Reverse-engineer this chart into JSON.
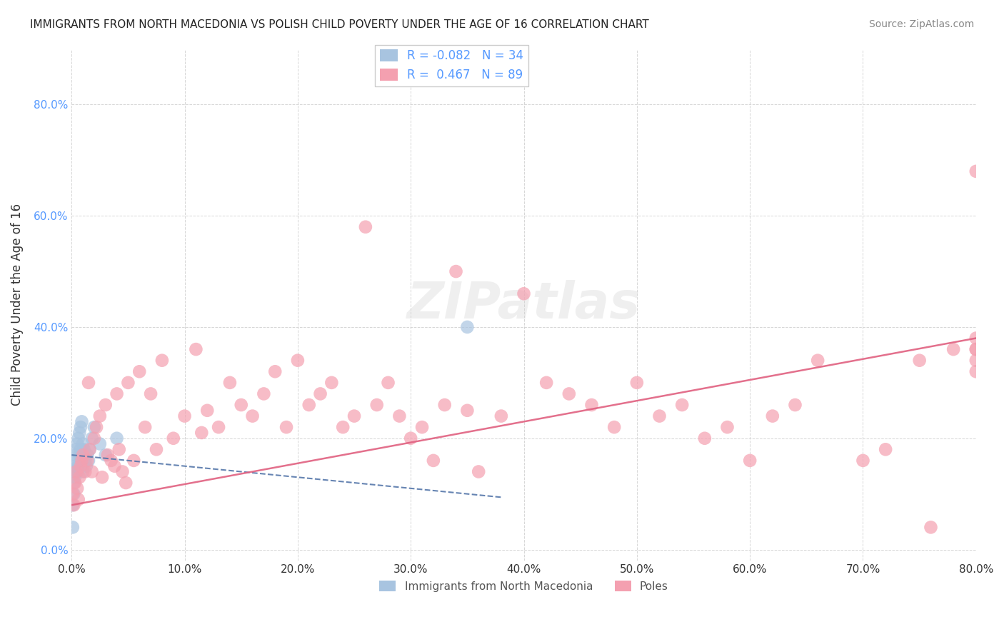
{
  "title": "IMMIGRANTS FROM NORTH MACEDONIA VS POLISH CHILD POVERTY UNDER THE AGE OF 16 CORRELATION CHART",
  "source": "Source: ZipAtlas.com",
  "xlabel": "",
  "ylabel": "Child Poverty Under the Age of 16",
  "legend_label1": "Immigrants from North Macedonia",
  "legend_label2": "Poles",
  "r1": -0.082,
  "n1": 34,
  "r2": 0.467,
  "n2": 89,
  "color1": "#a8c4e0",
  "color2": "#f4a0b0",
  "trendline1_color": "#5577aa",
  "trendline2_color": "#e06080",
  "xlim": [
    0,
    0.8
  ],
  "ylim": [
    -0.02,
    0.9
  ],
  "xticks": [
    0.0,
    0.1,
    0.2,
    0.3,
    0.4,
    0.5,
    0.6,
    0.7,
    0.8
  ],
  "yticks": [
    0.0,
    0.2,
    0.4,
    0.6,
    0.8
  ],
  "background_color": "#ffffff",
  "watermark": "ZIPatlas",
  "blue_points_x": [
    0.001,
    0.001,
    0.002,
    0.002,
    0.002,
    0.003,
    0.003,
    0.003,
    0.004,
    0.004,
    0.005,
    0.005,
    0.006,
    0.006,
    0.007,
    0.007,
    0.008,
    0.008,
    0.009,
    0.009,
    0.01,
    0.01,
    0.011,
    0.012,
    0.013,
    0.014,
    0.015,
    0.016,
    0.018,
    0.02,
    0.025,
    0.03,
    0.04,
    0.35
  ],
  "blue_points_y": [
    0.08,
    0.04,
    0.12,
    0.1,
    0.14,
    0.15,
    0.13,
    0.16,
    0.17,
    0.18,
    0.14,
    0.19,
    0.2,
    0.15,
    0.21,
    0.17,
    0.22,
    0.18,
    0.23,
    0.16,
    0.19,
    0.14,
    0.18,
    0.16,
    0.15,
    0.17,
    0.16,
    0.18,
    0.2,
    0.22,
    0.19,
    0.17,
    0.2,
    0.4
  ],
  "pink_points_x": [
    0.001,
    0.002,
    0.003,
    0.004,
    0.005,
    0.006,
    0.007,
    0.008,
    0.009,
    0.01,
    0.012,
    0.014,
    0.015,
    0.016,
    0.018,
    0.02,
    0.022,
    0.025,
    0.027,
    0.03,
    0.032,
    0.035,
    0.038,
    0.04,
    0.042,
    0.045,
    0.048,
    0.05,
    0.055,
    0.06,
    0.065,
    0.07,
    0.075,
    0.08,
    0.09,
    0.1,
    0.11,
    0.115,
    0.12,
    0.13,
    0.14,
    0.15,
    0.16,
    0.17,
    0.18,
    0.19,
    0.2,
    0.21,
    0.22,
    0.23,
    0.24,
    0.25,
    0.26,
    0.27,
    0.28,
    0.29,
    0.3,
    0.31,
    0.32,
    0.33,
    0.34,
    0.35,
    0.36,
    0.38,
    0.4,
    0.42,
    0.44,
    0.46,
    0.48,
    0.5,
    0.52,
    0.54,
    0.56,
    0.58,
    0.6,
    0.62,
    0.64,
    0.66,
    0.7,
    0.72,
    0.75,
    0.76,
    0.78,
    0.8,
    0.8,
    0.8,
    0.8,
    0.8,
    0.8
  ],
  "pink_points_y": [
    0.1,
    0.08,
    0.12,
    0.14,
    0.11,
    0.09,
    0.13,
    0.15,
    0.16,
    0.17,
    0.14,
    0.16,
    0.3,
    0.18,
    0.14,
    0.2,
    0.22,
    0.24,
    0.13,
    0.26,
    0.17,
    0.16,
    0.15,
    0.28,
    0.18,
    0.14,
    0.12,
    0.3,
    0.16,
    0.32,
    0.22,
    0.28,
    0.18,
    0.34,
    0.2,
    0.24,
    0.36,
    0.21,
    0.25,
    0.22,
    0.3,
    0.26,
    0.24,
    0.28,
    0.32,
    0.22,
    0.34,
    0.26,
    0.28,
    0.3,
    0.22,
    0.24,
    0.58,
    0.26,
    0.3,
    0.24,
    0.2,
    0.22,
    0.16,
    0.26,
    0.5,
    0.25,
    0.14,
    0.24,
    0.46,
    0.3,
    0.28,
    0.26,
    0.22,
    0.3,
    0.24,
    0.26,
    0.2,
    0.22,
    0.16,
    0.24,
    0.26,
    0.34,
    0.16,
    0.18,
    0.34,
    0.04,
    0.36,
    0.68,
    0.32,
    0.36,
    0.38,
    0.36,
    0.34
  ]
}
